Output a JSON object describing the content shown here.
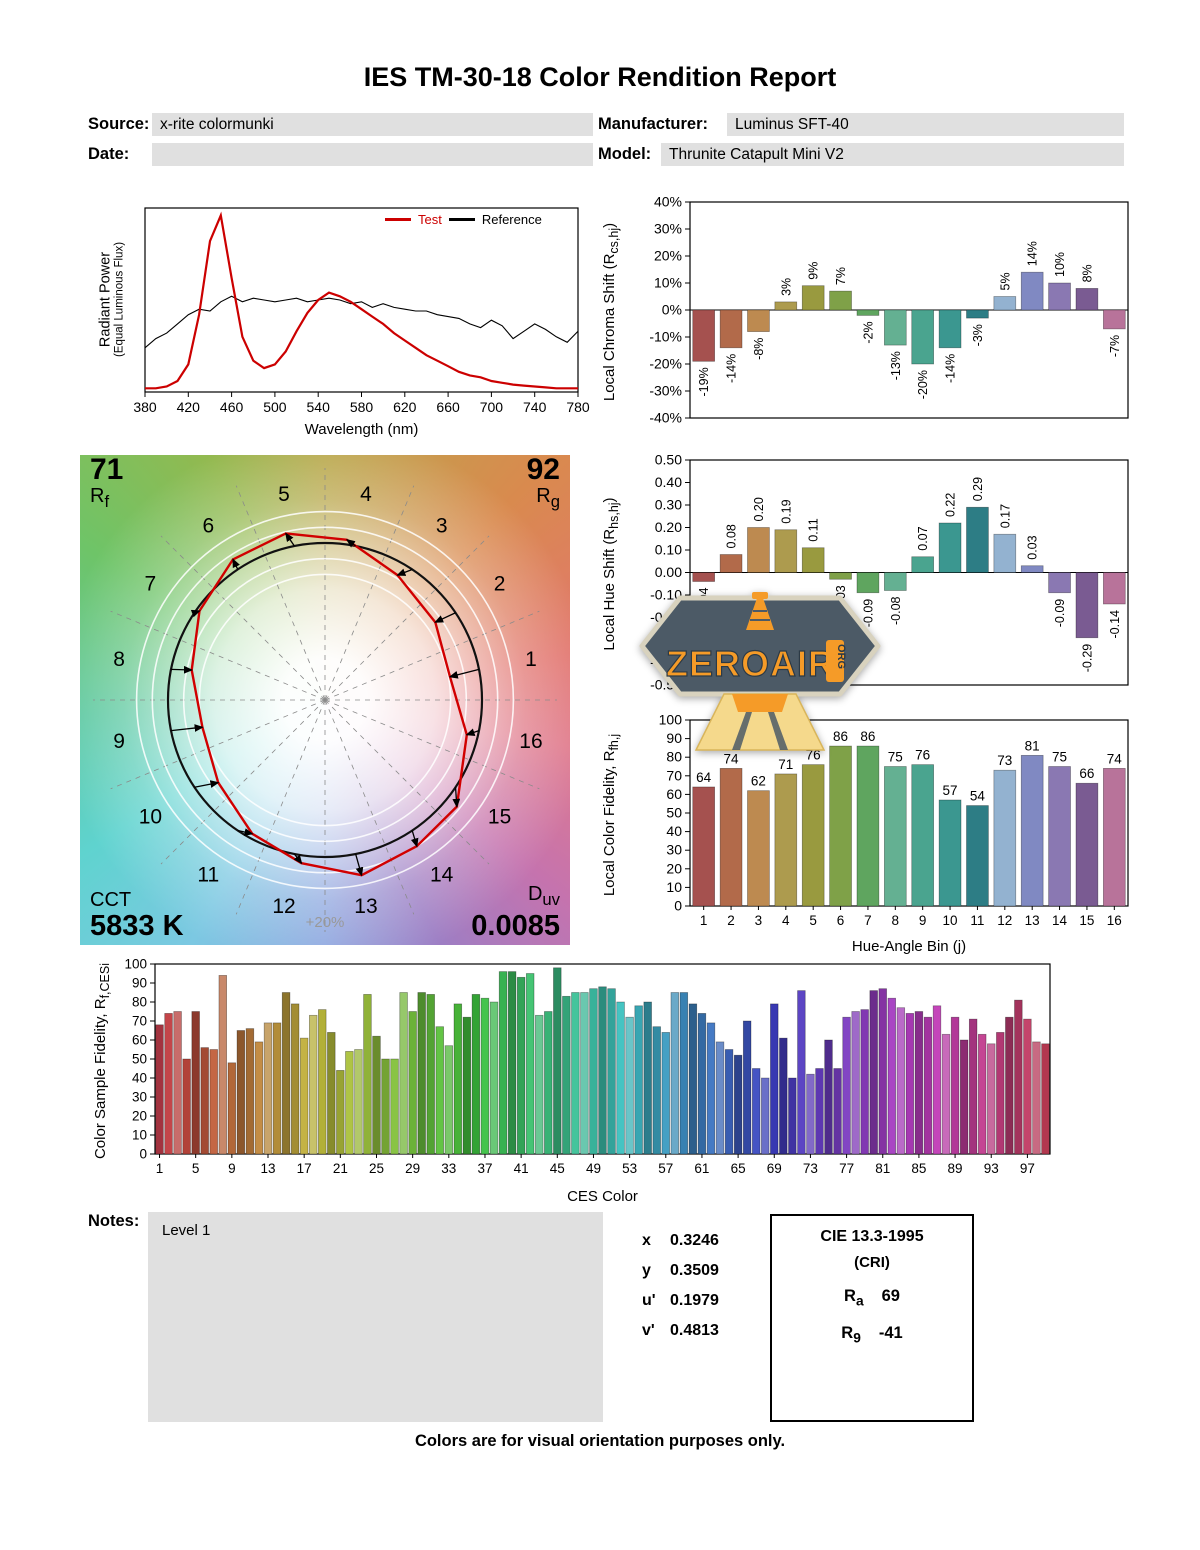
{
  "page": {
    "title": "IES TM-30-18 Color Rendition Report",
    "footer": "Colors are for visual orientation purposes only."
  },
  "header": {
    "source_label": "Source:",
    "source_value": "x-rite colormunki",
    "manufacturer_label": "Manufacturer:",
    "manufacturer_value": "Luminus SFT-40",
    "date_label": "Date:",
    "date_value": "",
    "model_label": "Model:",
    "model_value": "Thrunite Catapult Mini V2"
  },
  "notes": {
    "label": "Notes:",
    "value": "Level 1"
  },
  "chromaticity": {
    "rows": [
      {
        "label": "x",
        "value": "0.3246"
      },
      {
        "label": "y",
        "value": "0.3509"
      },
      {
        "label": "u'",
        "value": "0.1979"
      },
      {
        "label": "v'",
        "value": "0.4813"
      }
    ]
  },
  "cie_box": {
    "title": "CIE 13.3-1995",
    "subtitle": "(CRI)",
    "ra_letter": "R",
    "ra_sub": "a",
    "ra_value": "69",
    "r9_letter": "R",
    "r9_sub": "9",
    "r9_value": "-41"
  },
  "watermark": {
    "text": "ZEROAIR",
    "org": "ORG",
    "orange": "#f59b28",
    "slate": "#4c5a66"
  },
  "hue_bin_colors": [
    "#a5514f",
    "#b26a4a",
    "#bd8a50",
    "#ad9b4e",
    "#999a3f",
    "#7fa148",
    "#5fa55f",
    "#64b092",
    "#4aa48f",
    "#3b9790",
    "#2d7d85",
    "#93b2d0",
    "#8089c2",
    "#8a78b2",
    "#7a5b92",
    "#b8739a"
  ],
  "chart_data": [
    {
      "id": "spectral_power_distribution",
      "type": "line",
      "xlabel": "Wavelength (nm)",
      "ylabel_line1": "Radiant Power",
      "ylabel_line2": "(Equal Luminous Flux)",
      "xlim": [
        380,
        780
      ],
      "ylim": [
        0,
        1
      ],
      "xticks": [
        380,
        420,
        460,
        500,
        540,
        580,
        620,
        660,
        700,
        740,
        780
      ],
      "x": [
        380,
        390,
        400,
        410,
        420,
        430,
        440,
        450,
        460,
        470,
        480,
        490,
        500,
        510,
        520,
        530,
        540,
        550,
        560,
        570,
        580,
        590,
        600,
        610,
        620,
        630,
        640,
        650,
        660,
        670,
        680,
        690,
        700,
        710,
        720,
        730,
        740,
        750,
        760,
        770,
        780
      ],
      "series": [
        {
          "name": "Test",
          "color": "#cc0000",
          "y": [
            0.02,
            0.02,
            0.03,
            0.06,
            0.15,
            0.42,
            0.82,
            0.96,
            0.62,
            0.3,
            0.17,
            0.13,
            0.15,
            0.22,
            0.33,
            0.43,
            0.5,
            0.54,
            0.52,
            0.49,
            0.45,
            0.41,
            0.37,
            0.32,
            0.28,
            0.24,
            0.2,
            0.17,
            0.14,
            0.11,
            0.09,
            0.08,
            0.06,
            0.05,
            0.04,
            0.035,
            0.03,
            0.025,
            0.02,
            0.02,
            0.02
          ]
        },
        {
          "name": "Reference",
          "color": "#000000",
          "y": [
            0.24,
            0.29,
            0.32,
            0.37,
            0.42,
            0.45,
            0.44,
            0.49,
            0.52,
            0.49,
            0.51,
            0.5,
            0.49,
            0.5,
            0.51,
            0.49,
            0.5,
            0.51,
            0.5,
            0.48,
            0.49,
            0.46,
            0.48,
            0.46,
            0.45,
            0.44,
            0.44,
            0.42,
            0.41,
            0.4,
            0.37,
            0.35,
            0.39,
            0.36,
            0.29,
            0.33,
            0.37,
            0.34,
            0.3,
            0.27,
            0.33
          ]
        }
      ]
    },
    {
      "id": "local_chroma_shift",
      "type": "bar",
      "ylabel_pre": "Local Chroma Shift (R",
      "ylabel_sub": "cs,hj",
      "ylabel_post": ")",
      "categories": [
        1,
        2,
        3,
        4,
        5,
        6,
        7,
        8,
        9,
        10,
        11,
        12,
        13,
        14,
        15,
        16
      ],
      "values": [
        -19,
        -14,
        -8,
        3,
        9,
        7,
        -2,
        -13,
        -20,
        -14,
        -3,
        5,
        14,
        10,
        8,
        -7
      ],
      "value_labels": [
        "-19%",
        "-14%",
        "-8%",
        "3%",
        "9%",
        "7%",
        "-2%",
        "-13%",
        "-20%",
        "-14%",
        "-3%",
        "5%",
        "14%",
        "10%",
        "8%",
        "-7%"
      ],
      "ylim": [
        -40,
        40
      ],
      "ytick_labels": [
        "40%",
        "30%",
        "20%",
        "10%",
        "0%",
        "-10%",
        "-20%",
        "-30%",
        "-40%"
      ]
    },
    {
      "id": "local_hue_shift",
      "type": "bar",
      "ylabel_pre": "Local Hue Shift (R",
      "ylabel_sub": "hs,hj",
      "ylabel_post": ")",
      "categories": [
        1,
        2,
        3,
        4,
        5,
        6,
        7,
        8,
        9,
        10,
        11,
        12,
        13,
        14,
        15,
        16
      ],
      "values": [
        -0.04,
        0.08,
        0.2,
        0.19,
        0.11,
        -0.03,
        -0.09,
        -0.08,
        0.07,
        0.22,
        0.29,
        0.17,
        0.03,
        -0.09,
        -0.29,
        -0.14
      ],
      "value_labels": [
        "-0.04",
        "0.08",
        "0.20",
        "0.19",
        "0.11",
        "-0.03",
        "-0.09",
        "-0.08",
        "0.07",
        "0.22",
        "0.29",
        "0.17",
        "0.03",
        "-0.09",
        "-0.29",
        "-0.14"
      ],
      "ylim": [
        -0.5,
        0.5
      ],
      "ytick_labels": [
        "0.50",
        "0.40",
        "0.30",
        "0.20",
        "0.10",
        "0.00",
        "-0.10",
        "-0.20",
        "-0.30",
        "-0.40",
        "-0.50"
      ]
    },
    {
      "id": "local_color_fidelity",
      "type": "bar",
      "ylabel_pre": "Local Color Fidelity, R",
      "ylabel_sub": "fh,j",
      "ylabel_post": "",
      "xlabel": "Hue-Angle Bin (j)",
      "categories": [
        1,
        2,
        3,
        4,
        5,
        6,
        7,
        8,
        9,
        10,
        11,
        12,
        13,
        14,
        15,
        16
      ],
      "values": [
        64,
        74,
        62,
        71,
        76,
        86,
        86,
        75,
        76,
        57,
        54,
        73,
        81,
        75,
        66,
        74
      ],
      "ylim": [
        0,
        100
      ],
      "ytick_labels": [
        "100",
        "90",
        "80",
        "70",
        "60",
        "50",
        "40",
        "30",
        "20",
        "10",
        "0"
      ],
      "xtick_labels": [
        "1",
        "2",
        "3",
        "4",
        "5",
        "6",
        "7",
        "8",
        "9",
        "10",
        "11",
        "12",
        "13",
        "14",
        "15",
        "16"
      ]
    },
    {
      "id": "color_sample_fidelity",
      "type": "bar",
      "ylabel_pre": "Color Sample Fidelity, R",
      "ylabel_sub": "f,CESi",
      "ylabel_post": "",
      "xlabel": "CES Color",
      "values": [
        68,
        74,
        75,
        50,
        75,
        56,
        55,
        94,
        48,
        65,
        66,
        59,
        69,
        69,
        85,
        79,
        61,
        73,
        76,
        64,
        44,
        54,
        55,
        84,
        62,
        50,
        50,
        85,
        75,
        85,
        84,
        67,
        57,
        79,
        72,
        84,
        82,
        80,
        96,
        96,
        93,
        95,
        73,
        75,
        98,
        83,
        85,
        85,
        87,
        88,
        87,
        80,
        72,
        78,
        80,
        67,
        64,
        85,
        85,
        79,
        74,
        69,
        59,
        55,
        52,
        70,
        45,
        40,
        79,
        61,
        40,
        86,
        42,
        45,
        60,
        45,
        72,
        75,
        76,
        86,
        87,
        82,
        77,
        74,
        75,
        72,
        78,
        63,
        72,
        60,
        71,
        63,
        58,
        64,
        72,
        81,
        71,
        59,
        58
      ],
      "ylim": [
        0,
        100
      ],
      "ytick_labels": [
        "100",
        "90",
        "80",
        "70",
        "60",
        "50",
        "40",
        "30",
        "20",
        "10",
        "0"
      ],
      "xtick_labels": [
        "1",
        "5",
        "9",
        "13",
        "17",
        "21",
        "25",
        "29",
        "33",
        "37",
        "41",
        "45",
        "49",
        "53",
        "57",
        "61",
        "65",
        "69",
        "73",
        "77",
        "81",
        "85",
        "89",
        "93",
        "97"
      ],
      "xtick_positions": [
        0,
        4,
        8,
        12,
        16,
        20,
        24,
        28,
        32,
        36,
        40,
        44,
        48,
        52,
        56,
        60,
        64,
        68,
        72,
        76,
        80,
        84,
        88,
        92,
        96
      ]
    },
    {
      "id": "color_vector_graphic",
      "type": "cvg",
      "rf_label": "R",
      "rf_sub": "f",
      "rf_value": "71",
      "rg_label": "R",
      "rg_sub": "g",
      "rg_value": "92",
      "cct_label": "CCT",
      "cct_value": "5833 K",
      "duv_label": "D",
      "duv_sub": "uv",
      "duv_value": "0.0085",
      "outer_ring_label": "+20%",
      "bins": [
        1,
        2,
        3,
        4,
        5,
        6,
        7,
        8,
        9,
        10,
        11,
        12,
        13,
        14,
        15,
        16
      ]
    }
  ]
}
